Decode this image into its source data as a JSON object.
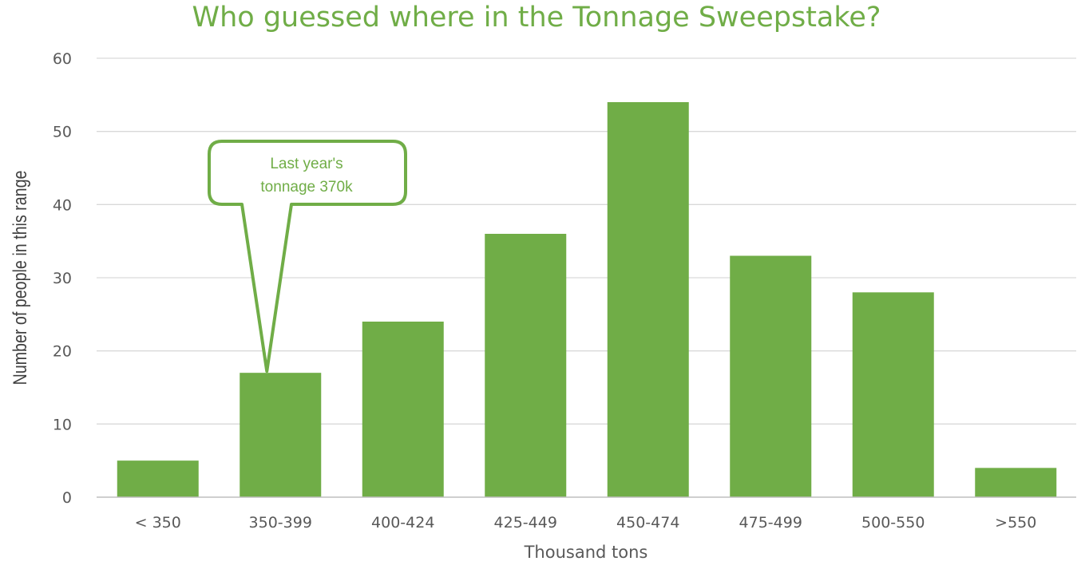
{
  "chart_data": {
    "type": "bar",
    "title": "Who guessed where in the Tonnage Sweepstake?",
    "xlabel": "Thousand tons",
    "ylabel": "Number of people in this range",
    "categories": [
      "< 350",
      "350-399",
      "400-424",
      "425-449",
      "450-474",
      "475-499",
      "500-550",
      ">550"
    ],
    "values": [
      5,
      17,
      24,
      36,
      54,
      33,
      28,
      4
    ],
    "ylim": [
      0,
      60
    ],
    "yticks": [
      "0",
      "10",
      "20",
      "30",
      "40",
      "50",
      "60"
    ],
    "grid": true,
    "legend": "none",
    "colors": {
      "bar": "#70ad47",
      "title": "#70ad47",
      "grid": "#d9d9d9",
      "text": "#595959"
    },
    "annotations": [
      {
        "text_lines": [
          "Last year's",
          "tonnage 370k"
        ],
        "target_category": "350-399"
      }
    ]
  }
}
